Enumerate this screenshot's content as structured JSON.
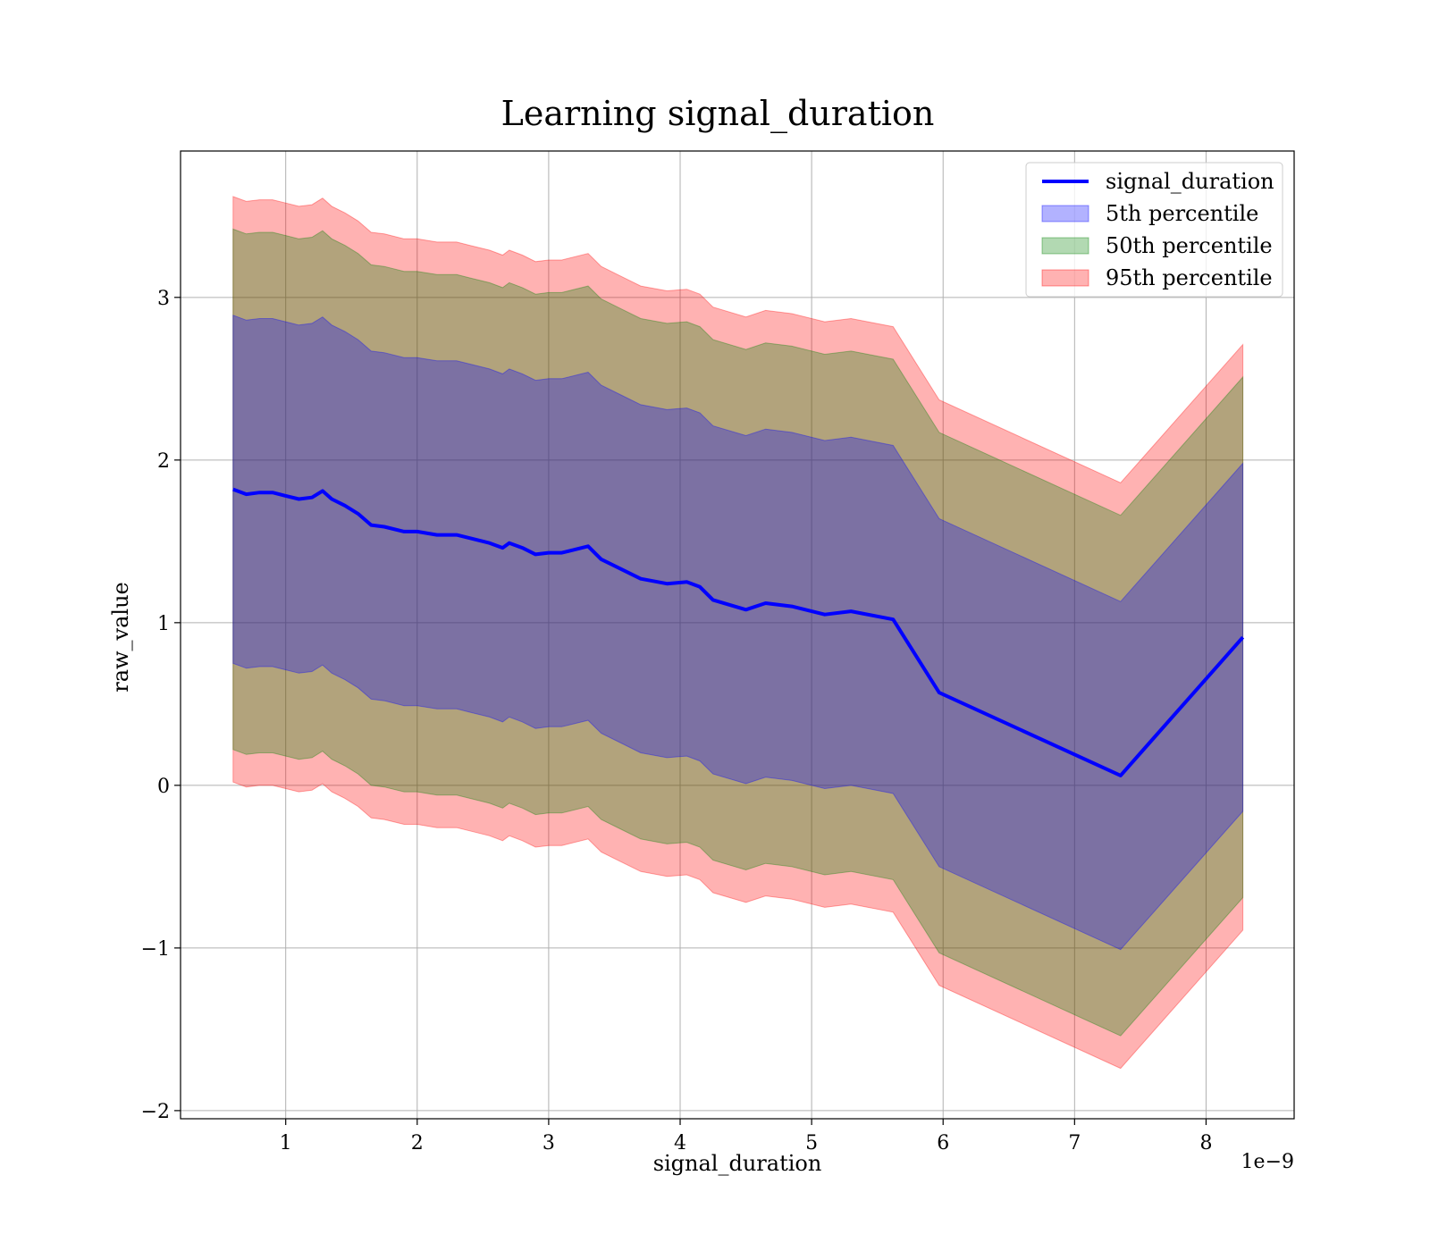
{
  "chart_data": {
    "type": "area",
    "title": "Learning signal_duration",
    "xlabel": "signal_duration",
    "ylabel": "raw_value",
    "x_offset_text": "1e−9",
    "xlim": [
      0.2,
      8.67
    ],
    "ylim": [
      -2.05,
      3.9
    ],
    "x_ticks": [
      1,
      2,
      3,
      4,
      5,
      6,
      7,
      8
    ],
    "y_ticks": [
      -2,
      -1,
      0,
      1,
      2,
      3
    ],
    "x_tick_labels": [
      "1",
      "2",
      "3",
      "4",
      "5",
      "6",
      "7",
      "8"
    ],
    "y_tick_labels": [
      "−2",
      "−1",
      "0",
      "1",
      "2",
      "3"
    ],
    "grid": true,
    "legend_position": "top-right",
    "x": [
      0.6,
      0.7,
      0.8,
      0.9,
      1.0,
      1.1,
      1.2,
      1.28,
      1.35,
      1.45,
      1.55,
      1.65,
      1.75,
      1.9,
      2.0,
      2.15,
      2.3,
      2.4,
      2.55,
      2.65,
      2.7,
      2.8,
      2.9,
      3.0,
      3.1,
      3.3,
      3.4,
      3.55,
      3.7,
      3.9,
      4.05,
      4.15,
      4.25,
      4.5,
      4.65,
      4.85,
      5.1,
      5.3,
      5.62,
      5.97,
      7.35,
      8.28
    ],
    "series": [
      {
        "name": "signal_duration",
        "kind": "line",
        "color": "#0000ff",
        "values": [
          1.82,
          1.79,
          1.8,
          1.8,
          1.78,
          1.76,
          1.77,
          1.81,
          1.76,
          1.72,
          1.67,
          1.6,
          1.59,
          1.56,
          1.56,
          1.54,
          1.54,
          1.52,
          1.49,
          1.46,
          1.49,
          1.46,
          1.42,
          1.43,
          1.43,
          1.47,
          1.39,
          1.33,
          1.27,
          1.24,
          1.25,
          1.22,
          1.14,
          1.08,
          1.12,
          1.1,
          1.05,
          1.07,
          1.02,
          0.57,
          0.06,
          0.91
        ]
      }
    ],
    "bands": [
      {
        "name": "5th percentile",
        "color": "#0000ff",
        "opacity": 0.3,
        "lower": [
          0.75,
          0.72,
          0.73,
          0.73,
          0.71,
          0.69,
          0.7,
          0.74,
          0.69,
          0.65,
          0.6,
          0.53,
          0.52,
          0.49,
          0.49,
          0.47,
          0.47,
          0.45,
          0.42,
          0.39,
          0.42,
          0.39,
          0.35,
          0.36,
          0.36,
          0.4,
          0.32,
          0.26,
          0.2,
          0.17,
          0.18,
          0.15,
          0.07,
          0.01,
          0.05,
          0.03,
          -0.02,
          0.0,
          -0.05,
          -0.5,
          -1.01,
          -0.16
        ],
        "upper": [
          2.89,
          2.86,
          2.87,
          2.87,
          2.85,
          2.83,
          2.84,
          2.88,
          2.83,
          2.79,
          2.74,
          2.67,
          2.66,
          2.63,
          2.63,
          2.61,
          2.61,
          2.59,
          2.56,
          2.53,
          2.56,
          2.53,
          2.49,
          2.5,
          2.5,
          2.54,
          2.46,
          2.4,
          2.34,
          2.31,
          2.32,
          2.29,
          2.21,
          2.15,
          2.19,
          2.17,
          2.12,
          2.14,
          2.09,
          1.64,
          1.13,
          1.98
        ]
      },
      {
        "name": "50th percentile",
        "color": "#008000",
        "opacity": 0.3,
        "lower": [
          0.22,
          0.19,
          0.2,
          0.2,
          0.18,
          0.16,
          0.17,
          0.21,
          0.16,
          0.12,
          0.07,
          0.0,
          -0.01,
          -0.04,
          -0.04,
          -0.06,
          -0.06,
          -0.08,
          -0.11,
          -0.14,
          -0.11,
          -0.14,
          -0.18,
          -0.17,
          -0.17,
          -0.13,
          -0.21,
          -0.27,
          -0.33,
          -0.36,
          -0.35,
          -0.38,
          -0.46,
          -0.52,
          -0.48,
          -0.5,
          -0.55,
          -0.53,
          -0.58,
          -1.03,
          -1.54,
          -0.69
        ],
        "upper": [
          3.42,
          3.39,
          3.4,
          3.4,
          3.38,
          3.36,
          3.37,
          3.41,
          3.36,
          3.32,
          3.27,
          3.2,
          3.19,
          3.16,
          3.16,
          3.14,
          3.14,
          3.12,
          3.09,
          3.06,
          3.09,
          3.06,
          3.02,
          3.03,
          3.03,
          3.07,
          2.99,
          2.93,
          2.87,
          2.84,
          2.85,
          2.82,
          2.74,
          2.68,
          2.72,
          2.7,
          2.65,
          2.67,
          2.62,
          2.17,
          1.66,
          2.51
        ]
      },
      {
        "name": "95th percentile",
        "color": "#ff0000",
        "opacity": 0.3,
        "lower": [
          0.02,
          -0.01,
          0.0,
          0.0,
          -0.02,
          -0.04,
          -0.03,
          0.01,
          -0.04,
          -0.08,
          -0.13,
          -0.2,
          -0.21,
          -0.24,
          -0.24,
          -0.26,
          -0.26,
          -0.28,
          -0.31,
          -0.34,
          -0.31,
          -0.34,
          -0.38,
          -0.37,
          -0.37,
          -0.33,
          -0.41,
          -0.47,
          -0.53,
          -0.56,
          -0.55,
          -0.58,
          -0.66,
          -0.72,
          -0.68,
          -0.7,
          -0.75,
          -0.73,
          -0.78,
          -1.23,
          -1.74,
          -0.89
        ],
        "upper": [
          3.62,
          3.59,
          3.6,
          3.6,
          3.58,
          3.56,
          3.57,
          3.61,
          3.56,
          3.52,
          3.47,
          3.4,
          3.39,
          3.36,
          3.36,
          3.34,
          3.34,
          3.32,
          3.29,
          3.26,
          3.29,
          3.26,
          3.22,
          3.23,
          3.23,
          3.27,
          3.19,
          3.13,
          3.07,
          3.04,
          3.05,
          3.02,
          2.94,
          2.88,
          2.92,
          2.9,
          2.85,
          2.87,
          2.82,
          2.37,
          1.86,
          2.71
        ]
      }
    ]
  }
}
